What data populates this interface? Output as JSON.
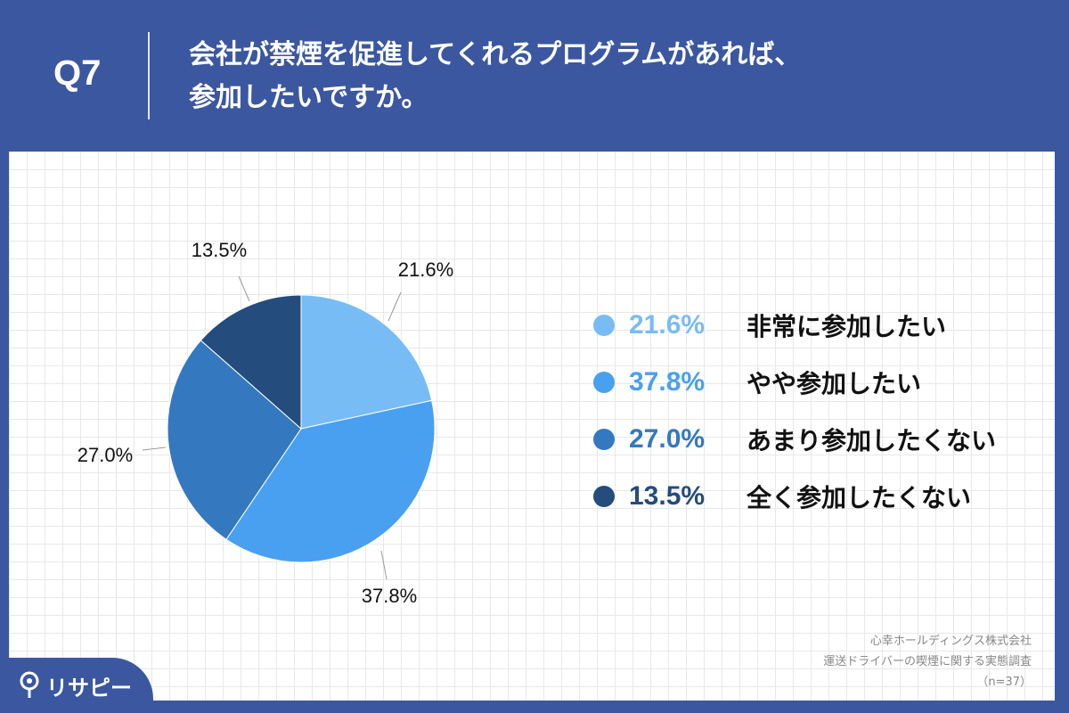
{
  "header": {
    "question_number": "Q7",
    "question_text": "会社が禁煙を促進してくれるプログラムがあれば、\n参加したいですか。"
  },
  "chart_data": {
    "type": "pie",
    "categories": [
      "非常に参加したい",
      "やや参加したい",
      "あまり参加したくない",
      "全く参加したくない"
    ],
    "values": [
      21.6,
      37.8,
      27.0,
      13.5
    ],
    "value_labels": [
      "21.6%",
      "37.8%",
      "27.0%",
      "13.5%"
    ],
    "colors": [
      "#78bcf5",
      "#4aa0f0",
      "#3479bf",
      "#244c7c"
    ],
    "legend_placement": "right"
  },
  "legend_pct_colors": [
    "#78bcf5",
    "#4aa0f0",
    "#3479bf",
    "#244c7c"
  ],
  "source": {
    "company": "心幸ホールディングス株式会社",
    "survey": "運送ドライバーの喫煙に関する実態調査",
    "sample": "（n=37）"
  },
  "brand": {
    "name": "リサピー"
  }
}
